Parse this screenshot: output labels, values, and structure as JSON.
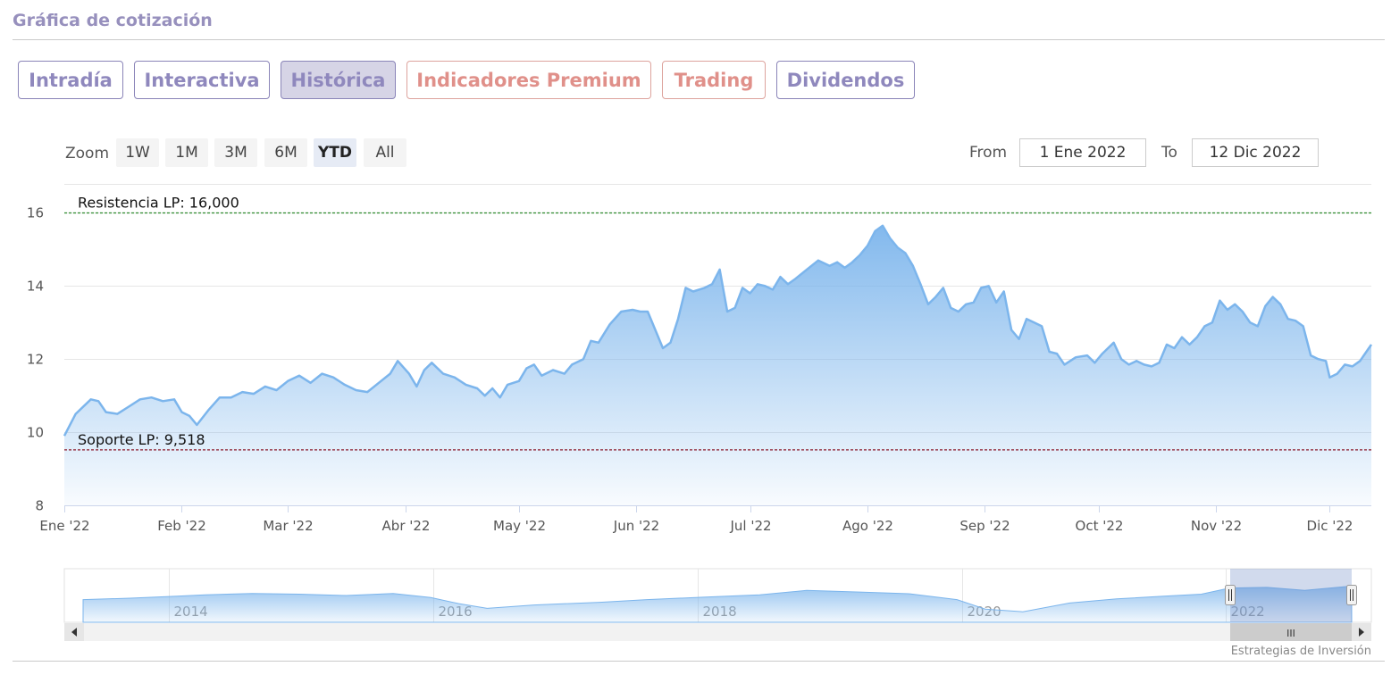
{
  "section_title": "Gráfica de cotización",
  "tabs": [
    {
      "label": "Intradía",
      "kind": "normal",
      "active": false
    },
    {
      "label": "Interactiva",
      "kind": "normal",
      "active": false
    },
    {
      "label": "Histórica",
      "kind": "normal",
      "active": true
    },
    {
      "label": "Indicadores Premium",
      "kind": "premium",
      "active": false
    },
    {
      "label": "Trading",
      "kind": "premium",
      "active": false
    },
    {
      "label": "Dividendos",
      "kind": "normal",
      "active": false
    }
  ],
  "zoom": {
    "label": "Zoom",
    "buttons": [
      {
        "label": "1W",
        "selected": false
      },
      {
        "label": "1M",
        "selected": false
      },
      {
        "label": "3M",
        "selected": false
      },
      {
        "label": "6M",
        "selected": false
      },
      {
        "label": "YTD",
        "selected": true
      },
      {
        "label": "All",
        "selected": false
      }
    ]
  },
  "range": {
    "from_label": "From",
    "from_value": "1 Ene 2022",
    "to_label": "To",
    "to_value": "12 Dic 2022"
  },
  "credit": "Estrategias de Inversión",
  "colors": {
    "accent": "#8f88bd",
    "premium": "#e0908a",
    "series": "#7cb5ec",
    "resistance": "#2e8b2e",
    "support": "#8b1a2b"
  },
  "chart_data": {
    "type": "area",
    "ylim": [
      8,
      16.5
    ],
    "yticks": [
      8,
      10,
      12,
      14,
      16
    ],
    "x_range": [
      "2022-01-01",
      "2022-12-12"
    ],
    "xticks": [
      {
        "date": "2022-01-01",
        "label": "Ene '22"
      },
      {
        "date": "2022-02-01",
        "label": "Feb '22"
      },
      {
        "date": "2022-03-01",
        "label": "Mar '22"
      },
      {
        "date": "2022-04-01",
        "label": "Abr '22"
      },
      {
        "date": "2022-05-01",
        "label": "May '22"
      },
      {
        "date": "2022-06-01",
        "label": "Jun '22"
      },
      {
        "date": "2022-07-01",
        "label": "Jul '22"
      },
      {
        "date": "2022-08-01",
        "label": "Ago '22"
      },
      {
        "date": "2022-09-01",
        "label": "Sep '22"
      },
      {
        "date": "2022-10-01",
        "label": "Oct '22"
      },
      {
        "date": "2022-11-01",
        "label": "Nov '22"
      },
      {
        "date": "2022-12-01",
        "label": "Dic '22"
      }
    ],
    "plot_lines": [
      {
        "label": "Resistencia LP: 16,000",
        "value": 16.0,
        "color": "#2e8b2e"
      },
      {
        "label": "Soporte LP: 9,518",
        "value": 9.518,
        "color": "#8b1a2b"
      }
    ],
    "series": [
      {
        "points": [
          [
            "2022-01-01",
            9.9
          ],
          [
            "2022-01-04",
            10.5
          ],
          [
            "2022-01-08",
            10.9
          ],
          [
            "2022-01-10",
            10.85
          ],
          [
            "2022-01-12",
            10.55
          ],
          [
            "2022-01-15",
            10.5
          ],
          [
            "2022-01-18",
            10.7
          ],
          [
            "2022-01-21",
            10.9
          ],
          [
            "2022-01-24",
            10.95
          ],
          [
            "2022-01-27",
            10.85
          ],
          [
            "2022-01-30",
            10.9
          ],
          [
            "2022-02-01",
            10.55
          ],
          [
            "2022-02-03",
            10.45
          ],
          [
            "2022-02-05",
            10.2
          ],
          [
            "2022-02-08",
            10.6
          ],
          [
            "2022-02-11",
            10.95
          ],
          [
            "2022-02-14",
            10.95
          ],
          [
            "2022-02-17",
            11.1
          ],
          [
            "2022-02-20",
            11.05
          ],
          [
            "2022-02-23",
            11.25
          ],
          [
            "2022-02-26",
            11.15
          ],
          [
            "2022-03-01",
            11.4
          ],
          [
            "2022-03-04",
            11.55
          ],
          [
            "2022-03-07",
            11.35
          ],
          [
            "2022-03-10",
            11.6
          ],
          [
            "2022-03-13",
            11.5
          ],
          [
            "2022-03-16",
            11.3
          ],
          [
            "2022-03-19",
            11.15
          ],
          [
            "2022-03-22",
            11.1
          ],
          [
            "2022-03-25",
            11.35
          ],
          [
            "2022-03-28",
            11.6
          ],
          [
            "2022-03-30",
            11.95
          ],
          [
            "2022-04-02",
            11.6
          ],
          [
            "2022-04-04",
            11.25
          ],
          [
            "2022-04-06",
            11.7
          ],
          [
            "2022-04-08",
            11.9
          ],
          [
            "2022-04-11",
            11.6
          ],
          [
            "2022-04-14",
            11.5
          ],
          [
            "2022-04-17",
            11.3
          ],
          [
            "2022-04-20",
            11.2
          ],
          [
            "2022-04-22",
            11.0
          ],
          [
            "2022-04-24",
            11.2
          ],
          [
            "2022-04-26",
            10.95
          ],
          [
            "2022-04-28",
            11.3
          ],
          [
            "2022-05-01",
            11.4
          ],
          [
            "2022-05-03",
            11.75
          ],
          [
            "2022-05-05",
            11.85
          ],
          [
            "2022-05-07",
            11.55
          ],
          [
            "2022-05-10",
            11.7
          ],
          [
            "2022-05-13",
            11.6
          ],
          [
            "2022-05-15",
            11.85
          ],
          [
            "2022-05-18",
            12.0
          ],
          [
            "2022-05-20",
            12.5
          ],
          [
            "2022-05-22",
            12.45
          ],
          [
            "2022-05-25",
            12.95
          ],
          [
            "2022-05-28",
            13.3
          ],
          [
            "2022-05-31",
            13.35
          ],
          [
            "2022-06-02",
            13.3
          ],
          [
            "2022-06-04",
            13.3
          ],
          [
            "2022-06-06",
            12.8
          ],
          [
            "2022-06-08",
            12.3
          ],
          [
            "2022-06-10",
            12.45
          ],
          [
            "2022-06-12",
            13.1
          ],
          [
            "2022-06-14",
            13.95
          ],
          [
            "2022-06-16",
            13.85
          ],
          [
            "2022-06-19",
            13.95
          ],
          [
            "2022-06-21",
            14.05
          ],
          [
            "2022-06-23",
            14.45
          ],
          [
            "2022-06-25",
            13.3
          ],
          [
            "2022-06-27",
            13.4
          ],
          [
            "2022-06-29",
            13.95
          ],
          [
            "2022-07-01",
            13.8
          ],
          [
            "2022-07-03",
            14.05
          ],
          [
            "2022-07-05",
            14.0
          ],
          [
            "2022-07-07",
            13.9
          ],
          [
            "2022-07-09",
            14.25
          ],
          [
            "2022-07-11",
            14.05
          ],
          [
            "2022-07-13",
            14.2
          ],
          [
            "2022-07-16",
            14.45
          ],
          [
            "2022-07-19",
            14.7
          ],
          [
            "2022-07-22",
            14.55
          ],
          [
            "2022-07-24",
            14.65
          ],
          [
            "2022-07-26",
            14.5
          ],
          [
            "2022-07-28",
            14.65
          ],
          [
            "2022-07-30",
            14.85
          ],
          [
            "2022-08-01",
            15.1
          ],
          [
            "2022-08-03",
            15.5
          ],
          [
            "2022-08-05",
            15.65
          ],
          [
            "2022-08-07",
            15.3
          ],
          [
            "2022-08-09",
            15.05
          ],
          [
            "2022-08-11",
            14.9
          ],
          [
            "2022-08-13",
            14.55
          ],
          [
            "2022-08-15",
            14.05
          ],
          [
            "2022-08-17",
            13.5
          ],
          [
            "2022-08-19",
            13.7
          ],
          [
            "2022-08-21",
            13.95
          ],
          [
            "2022-08-23",
            13.4
          ],
          [
            "2022-08-25",
            13.3
          ],
          [
            "2022-08-27",
            13.5
          ],
          [
            "2022-08-29",
            13.55
          ],
          [
            "2022-08-31",
            13.95
          ],
          [
            "2022-09-02",
            14.0
          ],
          [
            "2022-09-04",
            13.55
          ],
          [
            "2022-09-06",
            13.85
          ],
          [
            "2022-09-08",
            12.8
          ],
          [
            "2022-09-10",
            12.55
          ],
          [
            "2022-09-12",
            13.1
          ],
          [
            "2022-09-14",
            13.0
          ],
          [
            "2022-09-16",
            12.9
          ],
          [
            "2022-09-18",
            12.2
          ],
          [
            "2022-09-20",
            12.15
          ],
          [
            "2022-09-22",
            11.85
          ],
          [
            "2022-09-25",
            12.05
          ],
          [
            "2022-09-28",
            12.1
          ],
          [
            "2022-09-30",
            11.9
          ],
          [
            "2022-10-02",
            12.15
          ],
          [
            "2022-10-05",
            12.45
          ],
          [
            "2022-10-07",
            12.0
          ],
          [
            "2022-10-09",
            11.85
          ],
          [
            "2022-10-11",
            11.95
          ],
          [
            "2022-10-13",
            11.85
          ],
          [
            "2022-10-15",
            11.8
          ],
          [
            "2022-10-17",
            11.9
          ],
          [
            "2022-10-19",
            12.4
          ],
          [
            "2022-10-21",
            12.3
          ],
          [
            "2022-10-23",
            12.6
          ],
          [
            "2022-10-25",
            12.4
          ],
          [
            "2022-10-27",
            12.6
          ],
          [
            "2022-10-29",
            12.9
          ],
          [
            "2022-10-31",
            13.0
          ],
          [
            "2022-11-02",
            13.6
          ],
          [
            "2022-11-04",
            13.35
          ],
          [
            "2022-11-06",
            13.5
          ],
          [
            "2022-11-08",
            13.3
          ],
          [
            "2022-11-10",
            13.0
          ],
          [
            "2022-11-12",
            12.9
          ],
          [
            "2022-11-14",
            13.45
          ],
          [
            "2022-11-16",
            13.7
          ],
          [
            "2022-11-18",
            13.5
          ],
          [
            "2022-11-20",
            13.1
          ],
          [
            "2022-11-22",
            13.05
          ],
          [
            "2022-11-24",
            12.9
          ],
          [
            "2022-11-26",
            12.1
          ],
          [
            "2022-11-28",
            12.0
          ],
          [
            "2022-11-30",
            11.95
          ],
          [
            "2022-12-01",
            11.5
          ],
          [
            "2022-12-03",
            11.6
          ],
          [
            "2022-12-05",
            11.85
          ],
          [
            "2022-12-07",
            11.8
          ],
          [
            "2022-12-09",
            11.95
          ],
          [
            "2022-12-11",
            12.25
          ],
          [
            "2022-12-12",
            12.4
          ]
        ]
      }
    ],
    "navigator": {
      "year_labels": [
        "2014",
        "2016",
        "2018",
        "2020",
        "2022"
      ],
      "scroll_glyph": "III"
    }
  }
}
